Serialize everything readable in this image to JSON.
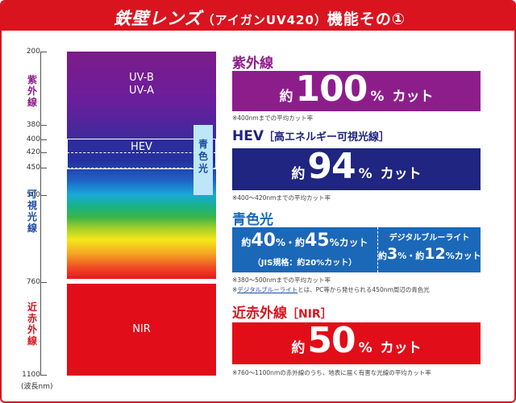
{
  "title": {
    "brand": "鉄壁レンズ",
    "paren": "（アイガンUV420）",
    "suffix": "機能その①"
  },
  "colors": {
    "red": "#d9141f",
    "purple": "#8e1d8c",
    "navy": "#1f2580",
    "blue": "#1c68b8",
    "nir_red": "#e10e1a"
  },
  "spectrum": {
    "ticks": [
      "200",
      "380",
      "400",
      "420",
      "450",
      "500",
      "760",
      "1100"
    ],
    "unit": "(波長nm)",
    "region_labels": {
      "uv": "紫外線",
      "visible": "可視光線",
      "nir": "近赤外線"
    },
    "bar_labels": {
      "uvb": "UV-B",
      "uva": "UV-A",
      "hev": "HEV",
      "nir": "NIR"
    },
    "blue_light_label": "青色光"
  },
  "sections": {
    "uv": {
      "heading": "紫外線",
      "prefix": "約",
      "value": "100",
      "percent": "%",
      "cut": "カット",
      "note": "※400nmまでの平均カット率"
    },
    "hev": {
      "heading": "HEV",
      "heading_sub": "［高エネルギー可視光線］",
      "prefix": "約",
      "value": "94",
      "percent": "%",
      "cut": "カット",
      "note": "※400～420nmまでの平均カット率"
    },
    "blue": {
      "heading": "青色光",
      "left_prefix": "約",
      "left_value1": "40",
      "left_dot": "%・約",
      "left_value2": "45",
      "left_suffix": "%カット",
      "left_sub": "（JIS規格：約20%カット）",
      "right_title": "デジタルブルーライト",
      "right_prefix": "約",
      "right_value1": "3",
      "right_dot": "%・約",
      "right_value2": "12",
      "right_suffix": "%カット",
      "note1": "※380～500nmまでの平均カット率",
      "note2_pre": "※",
      "note2_link": "デジタルブルーライト",
      "note2_post": "とは、PC等から発せられる450nm周辺の青色光"
    },
    "nir": {
      "heading": "近赤外線",
      "heading_sub": "［NIR］",
      "prefix": "約",
      "value": "50",
      "percent": "%",
      "cut": "カット",
      "note": "※760～1100nmの赤外線のうち、地表に届く有害な光線の平均カット率"
    }
  }
}
